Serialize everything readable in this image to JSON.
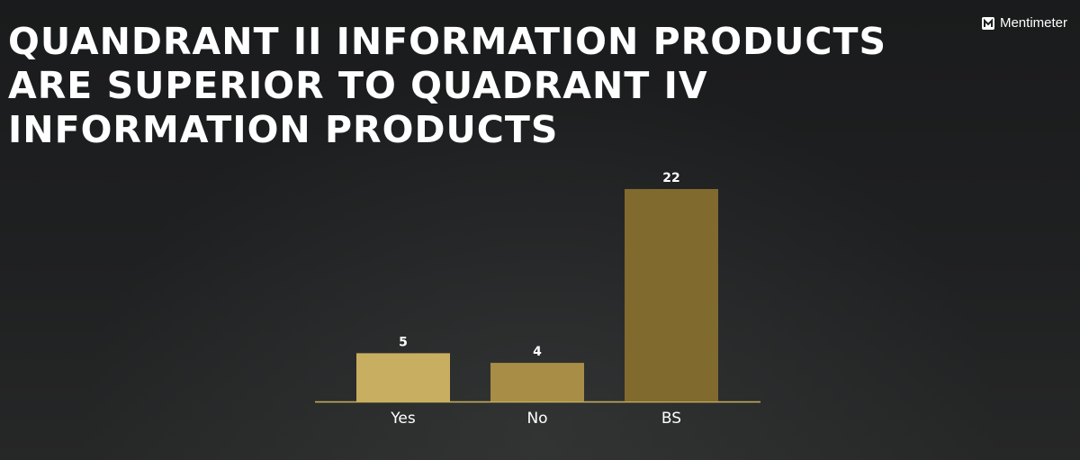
{
  "title": "Quandrant II information products are superior to Quadrant IV information products",
  "brand": {
    "name": "Mentimeter",
    "icon": "mentimeter-logo-icon"
  },
  "colors": {
    "background": "#1c1d1e",
    "text": "#ffffff",
    "baseline": "#c9b25e"
  },
  "chart_data": {
    "type": "bar",
    "categories": [
      "Yes",
      "No",
      "BS"
    ],
    "values": [
      5,
      4,
      22
    ],
    "colors": [
      "#c8ae60",
      "#a78d46",
      "#806a2e"
    ],
    "title": "Quandrant II information products are superior to Quadrant IV information products",
    "xlabel": "",
    "ylabel": "",
    "ylim": [
      0,
      22
    ],
    "grid": false
  }
}
